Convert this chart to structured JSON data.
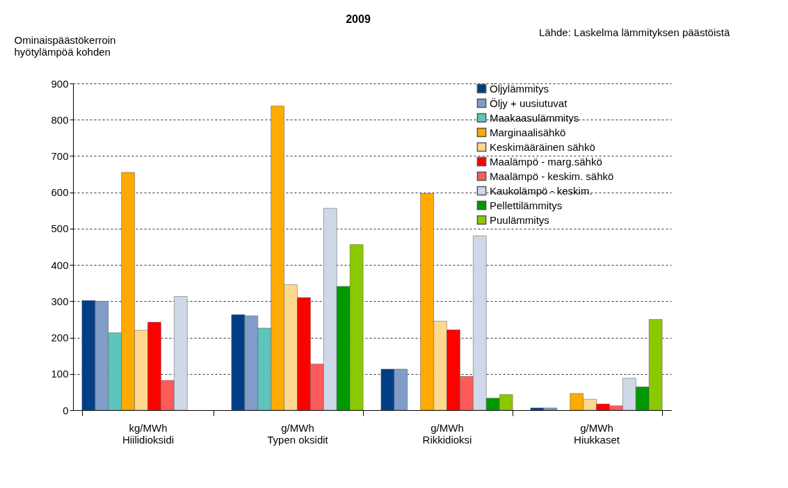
{
  "chart_data": {
    "type": "bar",
    "title": "2009",
    "ylabel": "Ominaispäästökerroin\nhyötylämpöä kohden",
    "annotations": [
      "Lähde: Laskelma lämmityksen päästöistä"
    ],
    "categories": [
      "kg/MWh\nHiilidioksidi",
      "g/MWh\nTypen oksidit",
      "g/MWh\nRikkidioksi",
      "g/MWh\nHiukkaset"
    ],
    "ylim": [
      0,
      900
    ],
    "yticks": [
      0,
      100,
      200,
      300,
      400,
      500,
      600,
      700,
      800,
      900
    ],
    "grid": "y",
    "legend": "top right",
    "series": [
      {
        "name": "Öljylämmitys",
        "color": "#003f87",
        "values": [
          302,
          263,
          113,
          6
        ]
      },
      {
        "name": "Öljy + uusiutuvat",
        "color": "#7f9dc8",
        "values": [
          300,
          260,
          113,
          6
        ]
      },
      {
        "name": "Maakaasulämmitys",
        "color": "#5fc4bd",
        "values": [
          213,
          226,
          null,
          null
        ]
      },
      {
        "name": "Marginaalisähkö",
        "color": "#ffaa00",
        "values": [
          655,
          838,
          597,
          46
        ]
      },
      {
        "name": "Keskimääräinen sähkö",
        "color": "#ffd88f",
        "values": [
          220,
          346,
          245,
          30
        ]
      },
      {
        "name": "Maalämpö - marg.sähkö",
        "color": "#ff0000",
        "values": [
          242,
          310,
          221,
          17
        ]
      },
      {
        "name": "Maalämpö - keskim. sähkö",
        "color": "#ff5a5a",
        "values": [
          82,
          127,
          93,
          12
        ]
      },
      {
        "name": "Kaukolämpö - keskim.",
        "color": "#cfd8e8",
        "values": [
          313,
          556,
          480,
          88
        ]
      },
      {
        "name": "Pellettilämmitys",
        "color": "#009a00",
        "values": [
          null,
          341,
          33,
          64
        ]
      },
      {
        "name": "Puulämmitys",
        "color": "#8cc800",
        "values": [
          null,
          456,
          43,
          250
        ]
      }
    ]
  }
}
